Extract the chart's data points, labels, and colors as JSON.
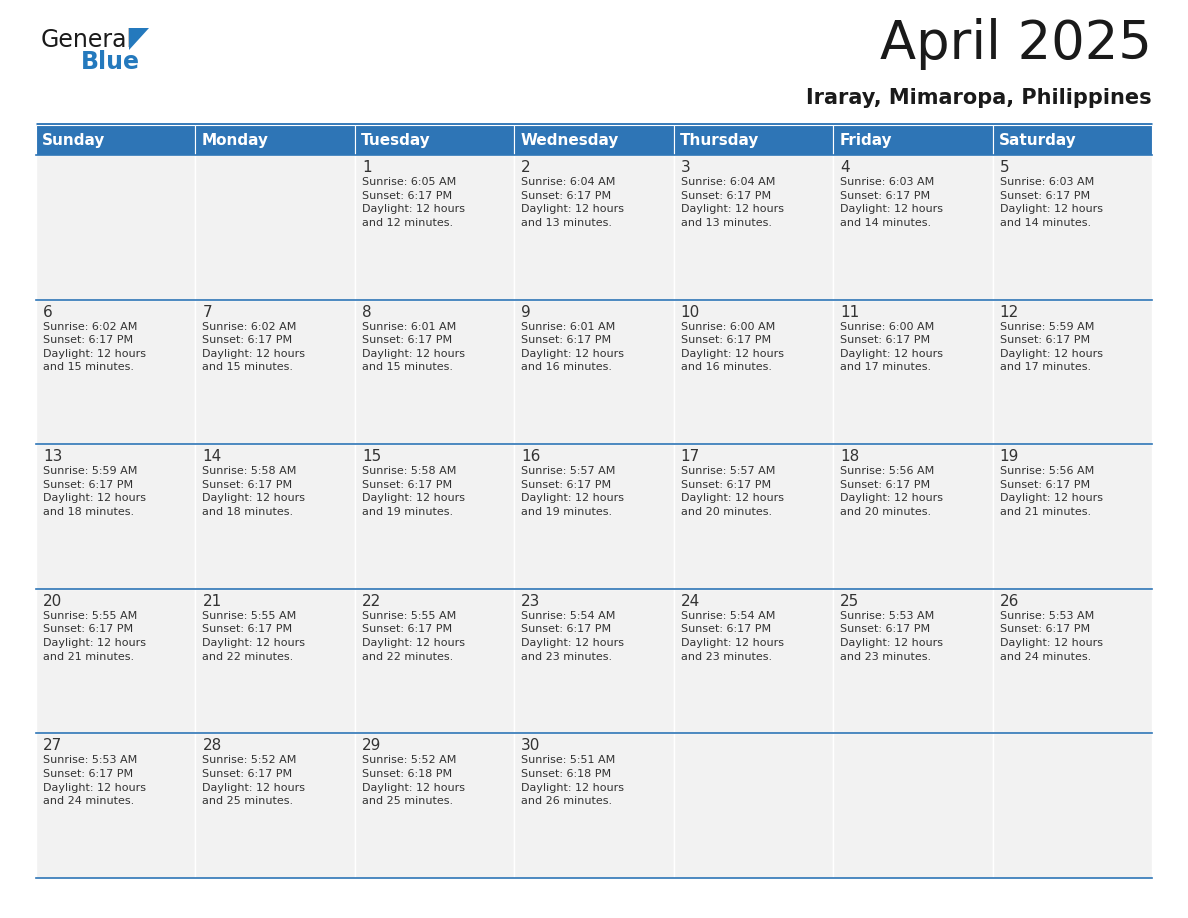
{
  "title": "April 2025",
  "subtitle": "Iraray, Mimaropa, Philippines",
  "header_color": "#2E75B6",
  "header_text_color": "#FFFFFF",
  "cell_bg_color": "#F2F2F2",
  "border_color": "#2E75B6",
  "text_color": "#333333",
  "days_of_week": [
    "Sunday",
    "Monday",
    "Tuesday",
    "Wednesday",
    "Thursday",
    "Friday",
    "Saturday"
  ],
  "weeks": [
    [
      {
        "day": "",
        "info": ""
      },
      {
        "day": "",
        "info": ""
      },
      {
        "day": "1",
        "info": "Sunrise: 6:05 AM\nSunset: 6:17 PM\nDaylight: 12 hours\nand 12 minutes."
      },
      {
        "day": "2",
        "info": "Sunrise: 6:04 AM\nSunset: 6:17 PM\nDaylight: 12 hours\nand 13 minutes."
      },
      {
        "day": "3",
        "info": "Sunrise: 6:04 AM\nSunset: 6:17 PM\nDaylight: 12 hours\nand 13 minutes."
      },
      {
        "day": "4",
        "info": "Sunrise: 6:03 AM\nSunset: 6:17 PM\nDaylight: 12 hours\nand 14 minutes."
      },
      {
        "day": "5",
        "info": "Sunrise: 6:03 AM\nSunset: 6:17 PM\nDaylight: 12 hours\nand 14 minutes."
      }
    ],
    [
      {
        "day": "6",
        "info": "Sunrise: 6:02 AM\nSunset: 6:17 PM\nDaylight: 12 hours\nand 15 minutes."
      },
      {
        "day": "7",
        "info": "Sunrise: 6:02 AM\nSunset: 6:17 PM\nDaylight: 12 hours\nand 15 minutes."
      },
      {
        "day": "8",
        "info": "Sunrise: 6:01 AM\nSunset: 6:17 PM\nDaylight: 12 hours\nand 15 minutes."
      },
      {
        "day": "9",
        "info": "Sunrise: 6:01 AM\nSunset: 6:17 PM\nDaylight: 12 hours\nand 16 minutes."
      },
      {
        "day": "10",
        "info": "Sunrise: 6:00 AM\nSunset: 6:17 PM\nDaylight: 12 hours\nand 16 minutes."
      },
      {
        "day": "11",
        "info": "Sunrise: 6:00 AM\nSunset: 6:17 PM\nDaylight: 12 hours\nand 17 minutes."
      },
      {
        "day": "12",
        "info": "Sunrise: 5:59 AM\nSunset: 6:17 PM\nDaylight: 12 hours\nand 17 minutes."
      }
    ],
    [
      {
        "day": "13",
        "info": "Sunrise: 5:59 AM\nSunset: 6:17 PM\nDaylight: 12 hours\nand 18 minutes."
      },
      {
        "day": "14",
        "info": "Sunrise: 5:58 AM\nSunset: 6:17 PM\nDaylight: 12 hours\nand 18 minutes."
      },
      {
        "day": "15",
        "info": "Sunrise: 5:58 AM\nSunset: 6:17 PM\nDaylight: 12 hours\nand 19 minutes."
      },
      {
        "day": "16",
        "info": "Sunrise: 5:57 AM\nSunset: 6:17 PM\nDaylight: 12 hours\nand 19 minutes."
      },
      {
        "day": "17",
        "info": "Sunrise: 5:57 AM\nSunset: 6:17 PM\nDaylight: 12 hours\nand 20 minutes."
      },
      {
        "day": "18",
        "info": "Sunrise: 5:56 AM\nSunset: 6:17 PM\nDaylight: 12 hours\nand 20 minutes."
      },
      {
        "day": "19",
        "info": "Sunrise: 5:56 AM\nSunset: 6:17 PM\nDaylight: 12 hours\nand 21 minutes."
      }
    ],
    [
      {
        "day": "20",
        "info": "Sunrise: 5:55 AM\nSunset: 6:17 PM\nDaylight: 12 hours\nand 21 minutes."
      },
      {
        "day": "21",
        "info": "Sunrise: 5:55 AM\nSunset: 6:17 PM\nDaylight: 12 hours\nand 22 minutes."
      },
      {
        "day": "22",
        "info": "Sunrise: 5:55 AM\nSunset: 6:17 PM\nDaylight: 12 hours\nand 22 minutes."
      },
      {
        "day": "23",
        "info": "Sunrise: 5:54 AM\nSunset: 6:17 PM\nDaylight: 12 hours\nand 23 minutes."
      },
      {
        "day": "24",
        "info": "Sunrise: 5:54 AM\nSunset: 6:17 PM\nDaylight: 12 hours\nand 23 minutes."
      },
      {
        "day": "25",
        "info": "Sunrise: 5:53 AM\nSunset: 6:17 PM\nDaylight: 12 hours\nand 23 minutes."
      },
      {
        "day": "26",
        "info": "Sunrise: 5:53 AM\nSunset: 6:17 PM\nDaylight: 12 hours\nand 24 minutes."
      }
    ],
    [
      {
        "day": "27",
        "info": "Sunrise: 5:53 AM\nSunset: 6:17 PM\nDaylight: 12 hours\nand 24 minutes."
      },
      {
        "day": "28",
        "info": "Sunrise: 5:52 AM\nSunset: 6:17 PM\nDaylight: 12 hours\nand 25 minutes."
      },
      {
        "day": "29",
        "info": "Sunrise: 5:52 AM\nSunset: 6:18 PM\nDaylight: 12 hours\nand 25 minutes."
      },
      {
        "day": "30",
        "info": "Sunrise: 5:51 AM\nSunset: 6:18 PM\nDaylight: 12 hours\nand 26 minutes."
      },
      {
        "day": "",
        "info": ""
      },
      {
        "day": "",
        "info": ""
      },
      {
        "day": "",
        "info": ""
      }
    ]
  ],
  "logo_color_general": "#1a1a1a",
  "logo_color_blue": "#2479BD",
  "logo_triangle_color": "#2479BD",
  "title_fontsize": 38,
  "subtitle_fontsize": 15,
  "header_fontsize": 11,
  "day_num_fontsize": 11,
  "info_fontsize": 8,
  "fig_width": 11.88,
  "fig_height": 9.18,
  "dpi": 100
}
